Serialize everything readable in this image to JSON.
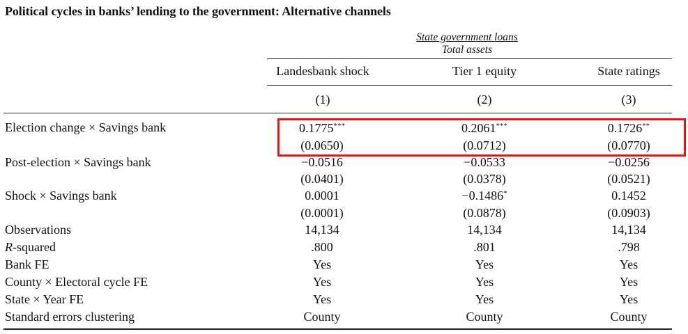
{
  "title": "Political cycles in banks’ lending to the government: Alternative channels",
  "dependent_variable": {
    "numerator": "State government loans",
    "denominator": "Total assets"
  },
  "columns": [
    {
      "header": "Landesbank shock",
      "number": "(1)"
    },
    {
      "header": "Tier 1 equity",
      "number": "(2)"
    },
    {
      "header": "State ratings",
      "number": "(3)"
    }
  ],
  "rows": {
    "election": {
      "label_pre": "Election change",
      "label_post": "Savings bank",
      "coef": [
        {
          "value": "0.1775",
          "stars": "***"
        },
        {
          "value": "0.2061",
          "stars": "***"
        },
        {
          "value": "0.1726",
          "stars": "**"
        }
      ],
      "se": [
        "(0.0650)",
        "(0.0712)",
        "(0.0770)"
      ]
    },
    "post": {
      "label_pre": "Post-election",
      "label_post": "Savings bank",
      "coef": [
        {
          "value": "−0.0516",
          "stars": ""
        },
        {
          "value": "−0.0533",
          "stars": ""
        },
        {
          "value": "−0.0256",
          "stars": ""
        }
      ],
      "se": [
        "(0.0401)",
        "(0.0378)",
        "(0.0521)"
      ]
    },
    "shock": {
      "label_pre": "Shock",
      "label_post": "Savings bank",
      "coef": [
        {
          "value": "0.0001",
          "stars": ""
        },
        {
          "value": "−0.1486",
          "stars": "*"
        },
        {
          "value": "0.1452",
          "stars": ""
        }
      ],
      "se": [
        "(0.0001)",
        "(0.0878)",
        "(0.0903)"
      ]
    },
    "observations": {
      "label": "Observations",
      "values": [
        "14,134",
        "14,134",
        "14,134"
      ]
    },
    "rsquared": {
      "label_italic": "R",
      "label_rest": "-squared",
      "values": [
        ".800",
        ".801",
        ".798"
      ]
    },
    "bankfe": {
      "label": "Bank FE",
      "values": [
        "Yes",
        "Yes",
        "Yes"
      ]
    },
    "countyfe": {
      "label_pre": "County",
      "label_post": "Electoral cycle FE",
      "values": [
        "Yes",
        "Yes",
        "Yes"
      ]
    },
    "statefe": {
      "label_pre": "State",
      "label_post": "Year FE",
      "values": [
        "Yes",
        "Yes",
        "Yes"
      ]
    },
    "clustering": {
      "label": "Standard errors clustering",
      "values": [
        "County",
        "County",
        "County"
      ]
    }
  },
  "times_symbol": "×",
  "highlight_color": "#e01515"
}
